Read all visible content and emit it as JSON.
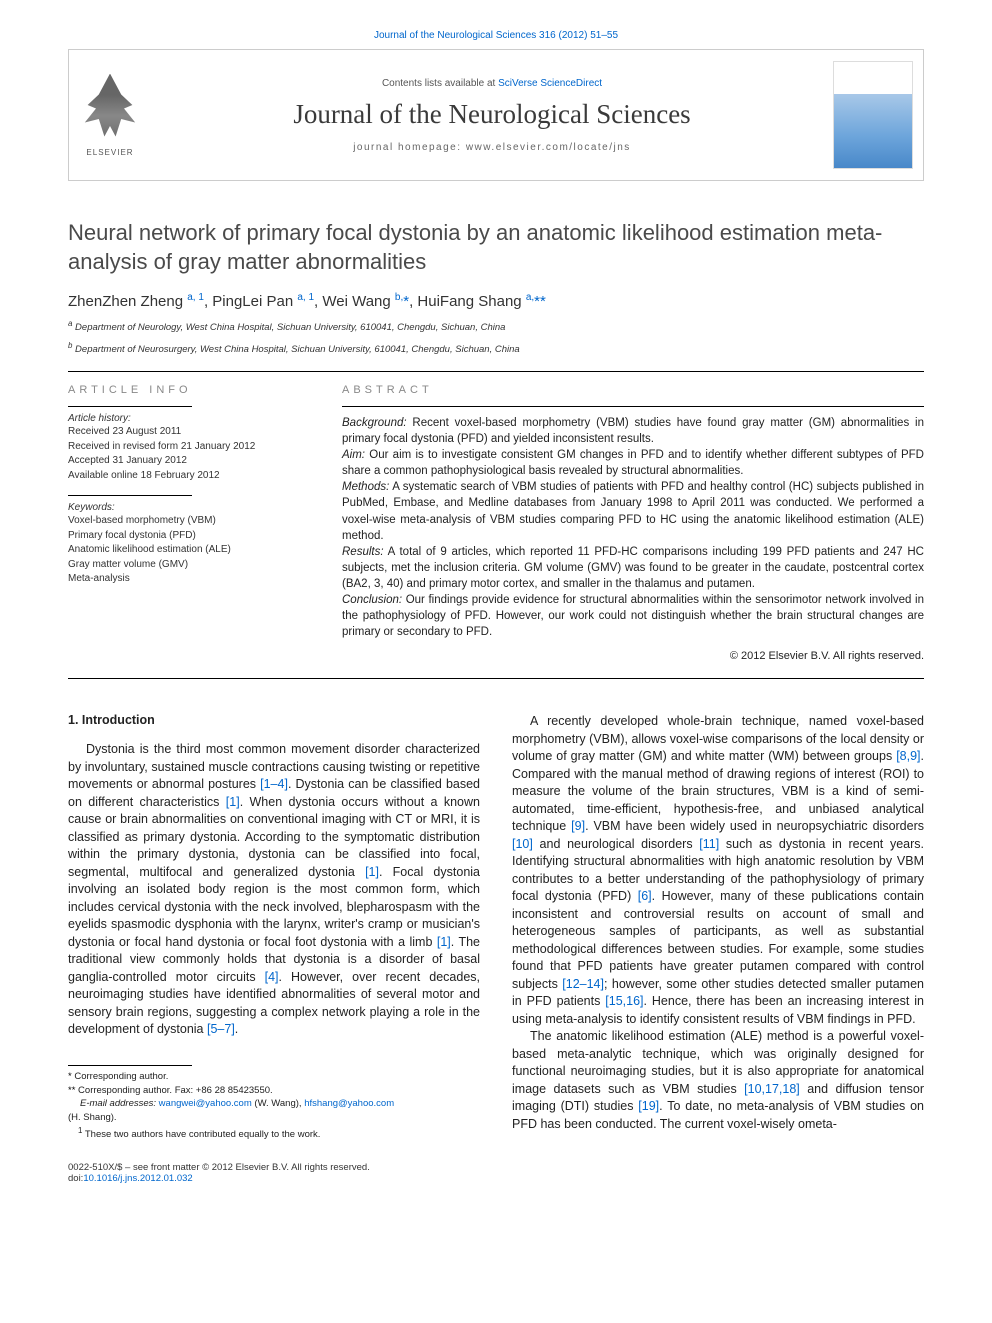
{
  "header": {
    "top_line": "Journal of the Neurological Sciences 316 (2012) 51–55",
    "contents_line_pre": "Contents lists available at ",
    "sciverse": "SciVerse ScienceDirect",
    "journal_title": "Journal of the Neurological Sciences",
    "homepage_label": "journal homepage: ",
    "homepage_url": "www.elsevier.com/locate/jns",
    "elsevier_text": "ELSEVIER"
  },
  "title": "Neural network of primary focal dystonia by an anatomic likelihood estimation meta-analysis of gray matter abnormalities",
  "authors_html": "ZhenZhen Zheng <sup>a, 1</sup>, PingLei Pan <sup>a, 1</sup>, Wei Wang <sup>b,</sup><span class='star'>*</span>, HuiFang Shang <sup>a,</sup><span class='star'>**</span>",
  "affiliations": {
    "a": "Department of Neurology, West China Hospital, Sichuan University, 610041, Chengdu, Sichuan, China",
    "b": "Department of Neurosurgery, West China Hospital, Sichuan University, 610041, Chengdu, Sichuan, China"
  },
  "article_info": {
    "label": "article info",
    "history_label": "Article history:",
    "received": "Received 23 August 2011",
    "revised": "Received in revised form 21 January 2012",
    "accepted": "Accepted 31 January 2012",
    "online": "Available online 18 February 2012",
    "keywords_label": "Keywords:",
    "keywords": [
      "Voxel-based morphometry (VBM)",
      "Primary focal dystonia (PFD)",
      "Anatomic likelihood estimation (ALE)",
      "Gray matter volume (GMV)",
      "Meta-analysis"
    ]
  },
  "abstract": {
    "label": "abstract",
    "background_lbl": "Background:",
    "background": " Recent voxel-based morphometry (VBM) studies have found gray matter (GM) abnormalities in primary focal dystonia (PFD) and yielded inconsistent results.",
    "aim_lbl": "Aim:",
    "aim": " Our aim is to investigate consistent GM changes in PFD and to identify whether different subtypes of PFD share a common pathophysiological basis revealed by structural abnormalities.",
    "methods_lbl": "Methods:",
    "methods": " A systematic search of VBM studies of patients with PFD and healthy control (HC) subjects published in PubMed, Embase, and Medline databases from January 1998 to April 2011 was conducted. We performed a voxel-wise meta-analysis of VBM studies comparing PFD to HC using the anatomic likelihood estimation (ALE) method.",
    "results_lbl": "Results:",
    "results": " A total of 9 articles, which reported 11 PFD-HC comparisons including 199 PFD patients and 247 HC subjects, met the inclusion criteria. GM volume (GMV) was found to be greater in the caudate, postcentral cortex (BA2, 3, 40) and primary motor cortex, and smaller in the thalamus and putamen.",
    "conclusion_lbl": "Conclusion:",
    "conclusion": " Our findings provide evidence for structural abnormalities within the sensorimotor network involved in the pathophysiology of PFD. However, our work could not distinguish whether the brain structural changes are primary or secondary to PFD.",
    "copyright": "© 2012 Elsevier B.V. All rights reserved."
  },
  "body": {
    "heading": "1. Introduction",
    "p1": "Dystonia is the third most common movement disorder characterized by involuntary, sustained muscle contractions causing twisting or repetitive movements or abnormal postures [1–4]. Dystonia can be classified based on different characteristics [1]. When dystonia occurs without a known cause or brain abnormalities on conventional imaging with CT or MRI, it is classified as primary dystonia. According to the symptomatic distribution within the primary dystonia, dystonia can be classified into focal, segmental, multifocal and generalized dystonia [1]. Focal dystonia involving an isolated body region is the most common form, which includes cervical dystonia with the neck involved, blepharospasm with the eyelids spasmodic dysphonia with the larynx, writer's cramp or musician's dystonia or focal hand dystonia or focal foot dystonia with a limb [1]. The traditional view commonly holds that dystonia is a disorder of basal ganglia-controlled motor circuits [4]. However, over recent decades, neuroimaging studies have identified abnormalities of several motor and sensory brain regions, suggesting a complex network playing a role in the development of dystonia [5–7].",
    "p2": "A recently developed whole-brain technique, named voxel-based morphometry (VBM), allows voxel-wise comparisons of the local density or volume of gray matter (GM) and white matter (WM) between groups [8,9]. Compared with the manual method of drawing regions of interest (ROI) to measure the volume of the brain structures, VBM is a kind of semi-automated, time-efficient, hypothesis-free, and unbiased analytical technique [9]. VBM have been widely used in neuropsychiatric disorders [10] and neurological disorders [11] such as dystonia in recent years. Identifying structural abnormalities with high anatomic resolution by VBM contributes to a better understanding of the pathophysiology of primary focal dystonia (PFD) [6]. However, many of these publications contain inconsistent and controversial results on account of small and heterogeneous samples of participants, as well as substantial methodological differences between studies. For example, some studies found that PFD patients have greater putamen compared with control subjects [12–14]; however, some other studies detected smaller putamen in PFD patients [15,16]. Hence, there has been an increasing interest in using meta-analysis to identify consistent results of VBM findings in PFD.",
    "p3": "The anatomic likelihood estimation (ALE) method is a powerful voxel-based meta-analytic technique, which was originally designed for functional neuroimaging studies, but it is also appropriate for anatomical image datasets such as VBM studies [10,17,18] and diffusion tensor imaging (DTI) studies [19]. To date, no meta-analysis of VBM studies on PFD has been conducted. The current voxel-wisely ometa-"
  },
  "footnotes": {
    "c1": "Corresponding author.",
    "c2": "Corresponding author. Fax: +86 28 85423550.",
    "email_lbl": "E-mail addresses:",
    "email1": "wangwei@yahoo.com",
    "email1_who": " (W. Wang), ",
    "email2": "hfshang@yahoo.com",
    "email2_who": "(H. Shang).",
    "contrib": "These two authors have contributed equally to the work."
  },
  "bottom": {
    "issn": "0022-510X/$ – see front matter © 2012 Elsevier B.V. All rights reserved.",
    "doi_lbl": "doi:",
    "doi": "10.1016/j.jns.2012.01.032"
  },
  "refs_p1": [
    "[1–4]",
    "[1]",
    "[1]",
    "[1]",
    "[4]",
    "[5–7]"
  ],
  "refs_p2": [
    "[8,9]",
    "[9]",
    "[10]",
    "[11]",
    "[6]",
    "[12–14]",
    "[15,16]"
  ],
  "refs_p3": [
    "[10,17,18]",
    "[19]"
  ],
  "colors": {
    "link": "#0066cc",
    "text": "#222222",
    "muted": "#888888",
    "border": "#cccccc"
  }
}
